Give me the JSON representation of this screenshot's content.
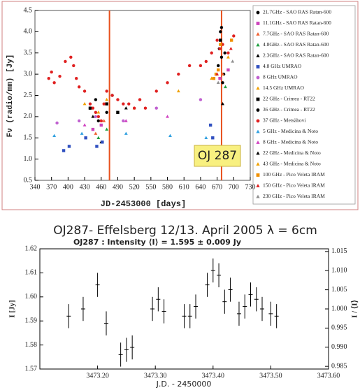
{
  "chart_data": [
    {
      "type": "scatter",
      "xlabel": "JD-2453000   [days]",
      "ylabel": "Fν (radio/mm) [Jy]",
      "annotation": "OJ 287",
      "xlim": [
        340,
        730
      ],
      "xticks": [
        340,
        370,
        400,
        430,
        460,
        490,
        520,
        550,
        580,
        610,
        640,
        670,
        700,
        730
      ],
      "ylim": [
        0.5,
        4.5
      ],
      "yticks": [
        0.5,
        {
          "value": 1,
          "label": "1.0"
        },
        1.5,
        {
          "value": 2,
          "label": "2.0"
        },
        2.5,
        {
          "value": 3,
          "label": "3.0"
        },
        3.5,
        {
          "value": 4,
          "label": "4.0"
        },
        4.5
      ],
      "vlines": [
        475,
        678
      ],
      "vline_color": "#e8501c",
      "series": [
        {
          "name": "21.7GHz - SAO RAS Ratan-600",
          "color": "#000000",
          "marker": "circle",
          "x": [
            440,
            455,
            470,
            672,
            674,
            676,
            678,
            680,
            682
          ],
          "values": [
            2.2,
            1.9,
            2.1,
            3.2,
            3.6,
            4.0,
            3.4,
            2.8,
            3.0
          ]
        },
        {
          "name": "11.1GHz - SAO RAS Ratan-600",
          "color": "#cc44bb",
          "marker": "square",
          "x": [
            445,
            460,
            675,
            690
          ],
          "values": [
            1.7,
            1.8,
            2.9,
            3.1
          ]
        },
        {
          "name": "7.7GHz - SAO RAS Ratan-600",
          "color": "#f06030",
          "marker": "triangle",
          "x": [
            450,
            465,
            680
          ],
          "values": [
            1.6,
            1.9,
            3.0
          ]
        },
        {
          "name": "4.8GHz - SAO RAS Ratan-600",
          "color": "#20a040",
          "marker": "triangle",
          "x": [
            455,
            470,
            685
          ],
          "values": [
            1.5,
            1.7,
            2.7
          ]
        },
        {
          "name": "2.3GHz - SAO RAS Ratan-600",
          "color": "#000000",
          "marker": "triangle",
          "x": [
            460,
            680
          ],
          "values": [
            1.4,
            2.3
          ]
        },
        {
          "name": "4.8 GHz UMRAO",
          "color": "#3050c0",
          "marker": "square",
          "x": [
            392,
            402,
            432,
            452,
            462,
            658,
            662
          ],
          "values": [
            1.2,
            1.3,
            1.5,
            1.3,
            1.4,
            1.8,
            1.5
          ]
        },
        {
          "name": "8 GHz UMRAO",
          "color": "#c060d0",
          "marker": "circle",
          "x": [
            380,
            420,
            450,
            500,
            560,
            640
          ],
          "values": [
            1.85,
            1.9,
            2.0,
            1.9,
            2.2,
            2.4
          ]
        },
        {
          "name": "14.5 GHz UMRAO",
          "color": "#f0a000",
          "marker": "triangle",
          "x": [
            430,
            470,
            520,
            600,
            660
          ],
          "values": [
            2.3,
            2.4,
            2.2,
            2.6,
            2.9
          ]
        },
        {
          "name": "22 GHz - Crimea - RT22",
          "color": "#000000",
          "marker": "square",
          "x": [
            440,
            470,
            490,
            676
          ],
          "values": [
            2.2,
            2.3,
            2.1,
            3.8
          ]
        },
        {
          "name": "36 GHz - Crimea - RT22",
          "color": "#000000",
          "marker": "circle",
          "x": [
            450,
            480,
            678,
            684
          ],
          "values": [
            2.4,
            2.5,
            4.1,
            3.5
          ]
        },
        {
          "name": "37 GHz - Metsähovi",
          "color": "#e02020",
          "marker": "circle",
          "x": [
            365,
            370,
            375,
            385,
            395,
            405,
            410,
            415,
            420,
            430,
            440,
            445,
            450,
            455,
            460,
            465,
            470,
            480,
            490,
            500,
            510,
            520,
            530,
            540,
            560,
            580,
            600,
            620,
            640,
            650,
            660,
            670,
            675,
            680,
            690,
            700
          ],
          "values": [
            2.9,
            3.05,
            2.8,
            2.95,
            3.3,
            3.4,
            3.2,
            2.9,
            2.7,
            2.6,
            2.3,
            2.2,
            2.1,
            2.0,
            1.9,
            2.3,
            2.6,
            2.5,
            2.4,
            2.3,
            2.3,
            2.2,
            2.4,
            2.2,
            2.6,
            2.8,
            3.0,
            3.2,
            3.2,
            3.3,
            3.5,
            3.8,
            3.6,
            3.7,
            3.5,
            3.9
          ]
        },
        {
          "name": "5 GHz - Medicina & Noto",
          "color": "#30a0e0",
          "marker": "triangle",
          "x": [
            375,
            425,
            505,
            585,
            650
          ],
          "values": [
            1.55,
            1.6,
            1.6,
            1.55,
            1.5
          ]
        },
        {
          "name": "8 GHz - Medicina & Noto",
          "color": "#d040c0",
          "marker": "triangle",
          "x": [
            430,
            505,
            580
          ],
          "values": [
            1.8,
            1.9,
            2.0
          ]
        },
        {
          "name": "22 GHz - Medicina & Noto",
          "color": "#000000",
          "marker": "triangle",
          "x": [
            445,
            505
          ],
          "values": [
            2.0,
            2.2
          ]
        },
        {
          "name": "43 GHz - Medicina & Noto",
          "color": "#f0a000",
          "marker": "triangle",
          "x": [
            455,
            690
          ],
          "values": [
            2.1,
            3.4
          ]
        },
        {
          "name": "100 GHz - Pico Veleta IRAM",
          "color": "#f09000",
          "marker": "square",
          "x": [
            664,
            668,
            672,
            676,
            696
          ],
          "values": [
            2.9,
            3.0,
            3.1,
            3.7,
            3.8
          ]
        },
        {
          "name": "150 GHz - Pico Veleta IRAM",
          "color": "#e02020",
          "marker": "triangle",
          "x": [
            670,
            695
          ],
          "values": [
            3.0,
            3.6
          ]
        },
        {
          "name": "230 GHz - Pico Veleta IRAM",
          "color": "#909090",
          "marker": "triangle",
          "x": [
            672,
            698
          ],
          "values": [
            2.8,
            3.3
          ]
        }
      ]
    },
    {
      "type": "scatter",
      "title": "OJ287- Effelsberg 12/13. April 2005 λ = 6cm",
      "subtitle": "OJ287 : Intensity    ⟨I⟩ =    1.595 ±  0.009 Jy",
      "xlabel": "J.D. - 2450000",
      "ylabel": "I [Jy]",
      "y2label": "I / ⟨I⟩",
      "xlim": [
        3473.1,
        3473.6
      ],
      "xticks": [
        {
          "value": 3473.2,
          "label": "3473.20"
        },
        {
          "value": 3473.3,
          "label": "3473.30"
        },
        {
          "value": 3473.4,
          "label": "3473.40"
        },
        {
          "value": 3473.5,
          "label": "3473.50"
        },
        {
          "value": 3473.6,
          "label": "3473.60"
        }
      ],
      "ylim": [
        1.57,
        1.62
      ],
      "yticks": [
        1.57,
        1.58,
        1.59,
        {
          "value": 1.6,
          "label": "1.60"
        },
        1.61,
        1.62
      ],
      "y2lim": [
        0.9843,
        1.0157
      ],
      "y2ticks": [
        0.985,
        {
          "value": 0.99,
          "label": "0.990"
        },
        0.995,
        {
          "value": 1,
          "label": "1.000"
        },
        1.005,
        {
          "value": 1.01,
          "label": "1.010"
        },
        1.015
      ],
      "series": [
        {
          "color": "#000000",
          "marker": "plus",
          "x": [
            3473.15,
            3473.175,
            3473.2,
            3473.215,
            3473.24,
            3473.25,
            3473.26,
            3473.295,
            3473.305,
            3473.315,
            3473.35,
            3473.36,
            3473.37,
            3473.39,
            3473.4,
            3473.41,
            3473.42,
            3473.43,
            3473.445,
            3473.455,
            3473.465,
            3473.475,
            3473.485,
            3473.5,
            3473.51
          ],
          "values": [
            1.592,
            1.595,
            1.605,
            1.589,
            1.576,
            1.578,
            1.579,
            1.595,
            1.599,
            1.594,
            1.592,
            1.592,
            1.596,
            1.605,
            1.611,
            1.609,
            1.598,
            1.603,
            1.593,
            1.596,
            1.601,
            1.599,
            1.595,
            1.593,
            1.592
          ],
          "errors": [
            0.005,
            0.005,
            0.005,
            0.005,
            0.005,
            0.005,
            0.005,
            0.005,
            0.005,
            0.005,
            0.005,
            0.005,
            0.005,
            0.005,
            0.005,
            0.005,
            0.005,
            0.005,
            0.005,
            0.005,
            0.005,
            0.005,
            0.005,
            0.005,
            0.005
          ]
        }
      ]
    }
  ]
}
